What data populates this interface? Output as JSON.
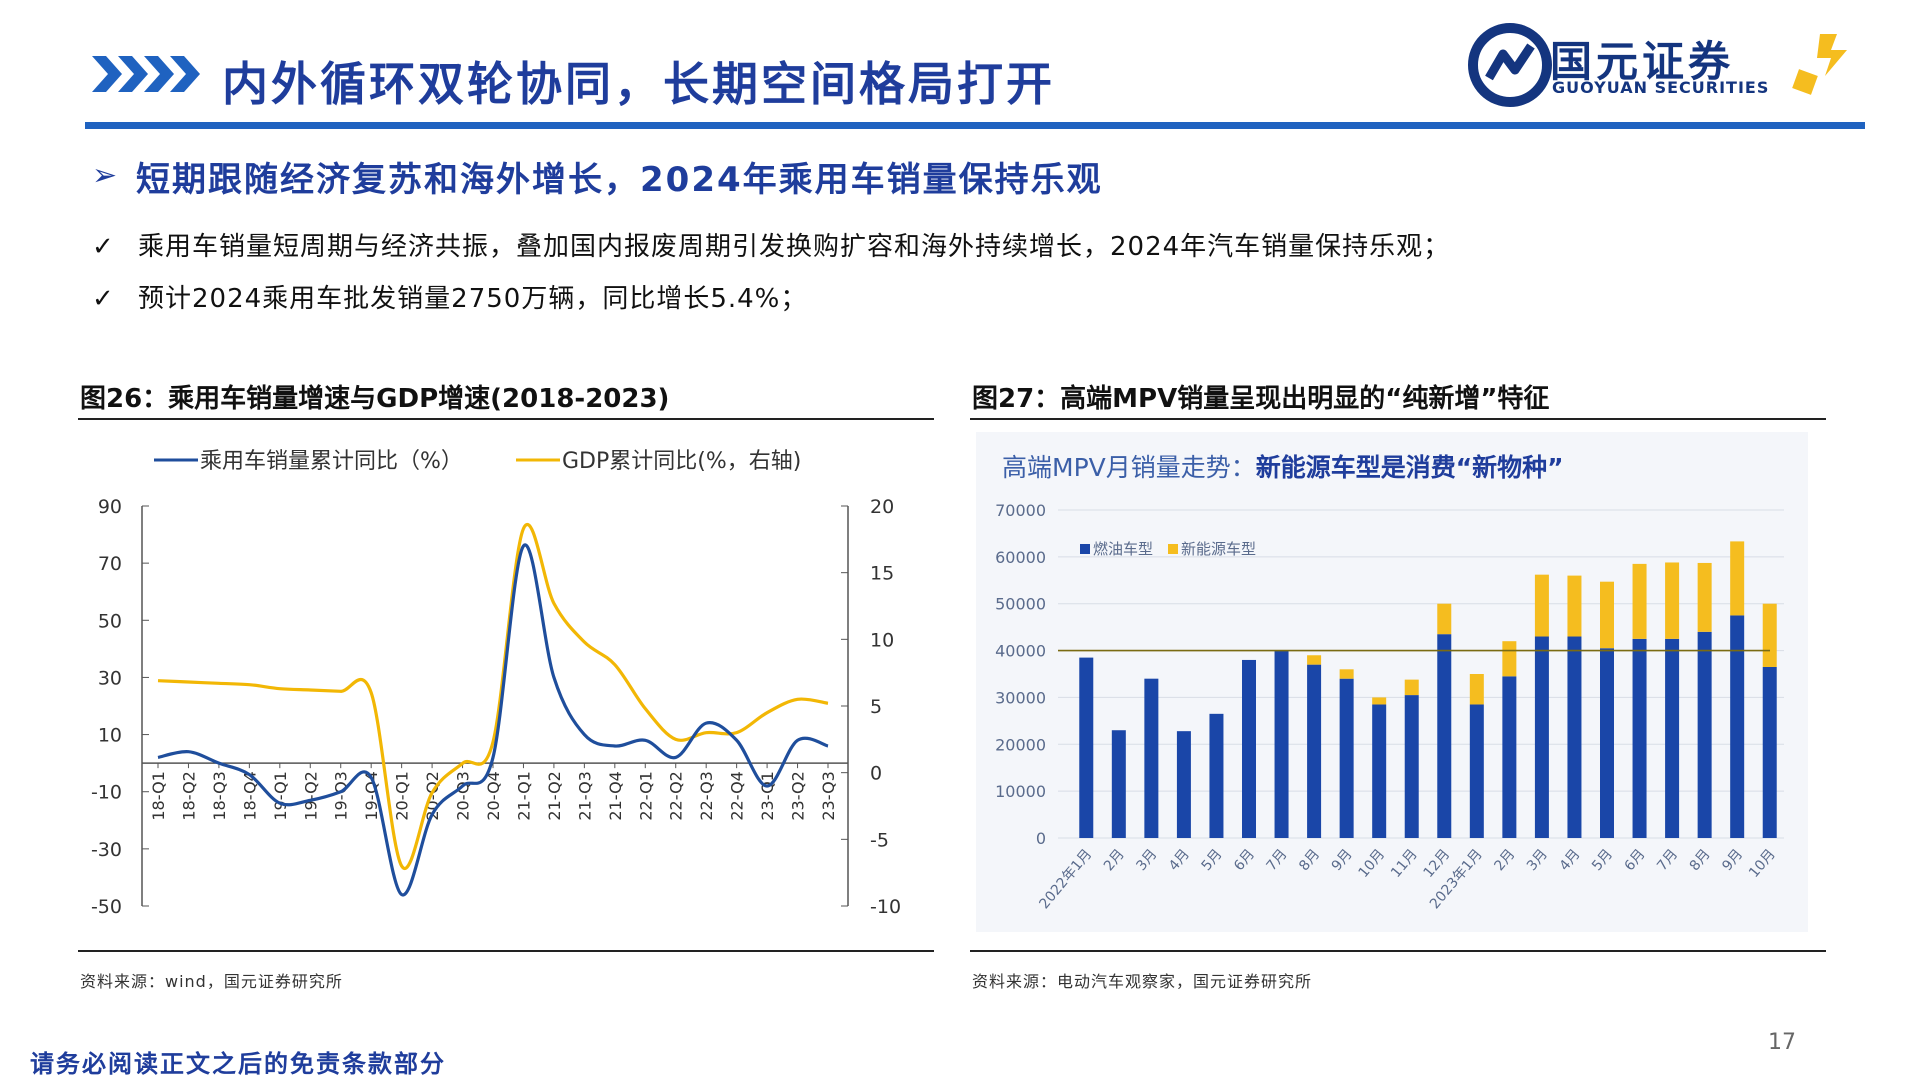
{
  "header": {
    "title": "内外循环双轮协同，长期空间格局打开",
    "logo_cn": "国元证券",
    "logo_en": "GUOYUAN SECURITIES"
  },
  "section": {
    "title": "短期跟随经济复苏和海外增长，2024年乘用车销量保持乐观",
    "bullets": [
      "乘用车销量短周期与经济共振，叠加国内报废周期引发换购扩容和海外持续增长，2024年汽车销量保持乐观；",
      "预计2024乘用车批发销量2750万辆，同比增长5.4%；"
    ],
    "bullet_mark": "✓"
  },
  "fig26": {
    "caption": "图26：乘用车销量增速与GDP增速(2018-2023)",
    "source": "资料来源：wind，国元证券研究所"
  },
  "fig27": {
    "caption": "图27：高端MPV销量呈现出明显的“纯新增”特征",
    "source": "资料来源：电动汽车观察家，国元证券研究所"
  },
  "footer": {
    "disclaimer": "请务必阅读正文之后的免责条款部分",
    "page": "17"
  },
  "colors": {
    "brand_blue": "#1f3d9c",
    "rule_blue": "#1f62c0",
    "series_blue": "#1f4e9c",
    "series_gold": "#f2b705",
    "bar_blue": "#1a46a8",
    "bar_gold": "#f5bd1f"
  },
  "chart_data": [
    {
      "type": "line",
      "categories": [
        "18-Q1",
        "18-Q2",
        "18-Q3",
        "18-Q4",
        "19-Q1",
        "19-Q2",
        "19-Q3",
        "19-Q4",
        "20-Q1",
        "20-Q2",
        "20-Q3",
        "20-Q4",
        "21-Q1",
        "21-Q2",
        "21-Q3",
        "21-Q4",
        "22-Q1",
        "22-Q2",
        "22-Q3",
        "22-Q4",
        "23-Q1",
        "23-Q2",
        "23-Q3"
      ],
      "series": [
        {
          "name": "乘用车销量累计同比（%）",
          "axis": "left",
          "values": [
            2,
            4,
            0,
            -4,
            -14,
            -13,
            -10,
            -5,
            -46,
            -18,
            -8,
            2,
            76,
            30,
            10,
            6,
            8,
            2,
            14,
            8,
            -8,
            8,
            6
          ]
        },
        {
          "name": "GDP累计同比(%，右轴)",
          "axis": "right",
          "values": [
            6.9,
            6.8,
            6.7,
            6.6,
            6.3,
            6.2,
            6.1,
            6.0,
            -7.0,
            -1.5,
            0.7,
            2.3,
            18.3,
            12.7,
            9.8,
            8.1,
            4.8,
            2.5,
            3.0,
            3.0,
            4.5,
            5.5,
            5.2
          ]
        }
      ],
      "ylim": [
        -50,
        90
      ],
      "yticks": [
        90,
        70,
        50,
        30,
        10,
        -10,
        -30,
        -50
      ],
      "y2lim": [
        -10,
        20
      ],
      "y2ticks": [
        20,
        15,
        10,
        5,
        0,
        -5,
        -10
      ],
      "legend": "top",
      "grid": false
    },
    {
      "type": "bar",
      "title": "高端MPV月销量走势：",
      "title_emphasis": "新能源车型是消费“新物种”",
      "categories": [
        "2022年1月",
        "2月",
        "3月",
        "4月",
        "5月",
        "6月",
        "7月",
        "8月",
        "9月",
        "10月",
        "11月",
        "12月",
        "2023年1月",
        "2月",
        "3月",
        "4月",
        "5月",
        "6月",
        "7月",
        "8月",
        "9月",
        "10月"
      ],
      "series": [
        {
          "name": "燃油车型",
          "values": [
            38500,
            23000,
            34000,
            22800,
            26500,
            38000,
            40000,
            37000,
            34000,
            28500,
            30500,
            43500,
            28500,
            34500,
            43000,
            43000,
            40500,
            42500,
            42500,
            44000,
            47500,
            36500
          ]
        },
        {
          "name": "新能源车型",
          "values": [
            0,
            0,
            0,
            0,
            0,
            0,
            0,
            2000,
            2000,
            1500,
            3300,
            6500,
            6500,
            7500,
            13200,
            13000,
            14200,
            16000,
            16300,
            14700,
            15800,
            13500
          ]
        }
      ],
      "stacked": true,
      "reference_line": 40000,
      "ylim": [
        0,
        70000
      ],
      "yticks": [
        70000,
        60000,
        50000,
        40000,
        30000,
        20000,
        10000,
        0
      ],
      "legend": "top-left",
      "grid": true
    }
  ]
}
